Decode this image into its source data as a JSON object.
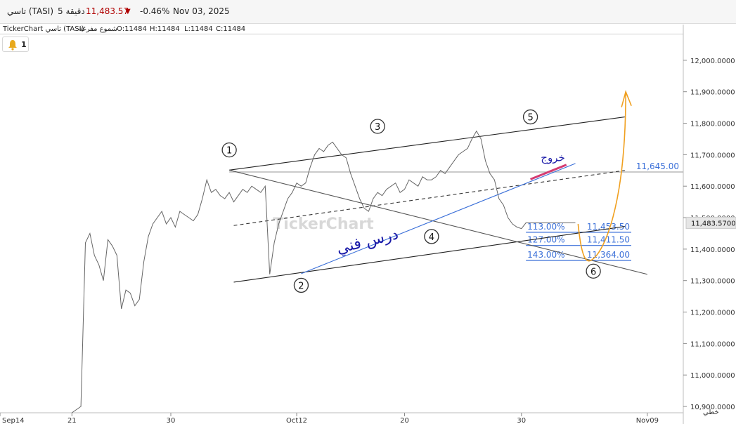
{
  "header": {
    "symbol": "تاسي (TASI)",
    "interval": "5 دقيقة",
    "price": "11,483.57",
    "change": "-0.46%",
    "date": "Nov 03, 2025",
    "down_color": "#b00000"
  },
  "subheader": {
    "source": "TickerChart تاسي (TASI)",
    "chart_style": "شموع مفرغة",
    "open": "O:11484",
    "high": "H:11484",
    "low": "L:11484",
    "close": "C:11484"
  },
  "alerts": {
    "icon": "bell-icon",
    "count": "1"
  },
  "scale_button": "خطي",
  "watermark": "TickerChart",
  "chart_data": {
    "type": "line",
    "y_axis": {
      "ticks": [
        "12,000.0000",
        "11,900.0000",
        "11,800.0000",
        "11,700.0000",
        "11,600.0000",
        "11,500.0000",
        "11,400.0000",
        "11,300.0000",
        "11,200.0000",
        "11,100.0000",
        "11,000.0000",
        "10,900.0000"
      ],
      "tick_values": [
        12000,
        11900,
        11800,
        11700,
        11600,
        11500,
        11400,
        11300,
        11200,
        11100,
        11000,
        10900
      ],
      "ylim": [
        10880,
        12080
      ],
      "current_value": 11483.57,
      "current_label": "11,483.5700",
      "grid": false
    },
    "x_axis": {
      "ticks": [
        "Sep14",
        "21",
        "30",
        "Oct12",
        "20",
        "30",
        "Nov09"
      ],
      "tick_index": [
        0,
        8,
        19,
        33,
        45,
        58,
        72
      ],
      "xlim": [
        0,
        76
      ]
    },
    "series": [
      {
        "x": [
          8,
          9,
          9.5,
          10,
          10.5,
          11,
          11.5,
          12,
          12.5,
          13,
          13.5,
          14,
          14.5,
          15,
          15.5,
          16,
          16.5,
          17,
          17.5,
          18,
          18.5,
          19,
          19.5,
          20,
          20.5,
          21,
          21.5,
          22,
          22.5,
          23,
          23.5,
          24,
          24.5,
          25,
          25.5,
          26,
          26.5,
          27,
          27.5,
          28,
          28.5,
          29,
          29.5,
          30,
          30.5,
          31,
          31.5,
          32,
          32.5,
          33,
          33.5,
          34,
          34.5,
          35,
          35.5,
          36,
          36.5,
          37,
          37.5,
          38,
          38.5,
          39,
          39.5,
          40,
          40.5,
          41,
          41.5,
          42,
          42.5,
          43,
          43.5,
          44,
          44.5,
          45,
          45.5,
          46,
          46.5,
          47,
          47.5,
          48,
          48.5,
          49,
          49.5,
          50,
          50.5,
          51,
          51.5,
          52,
          52.5,
          53,
          53.5,
          54,
          54.5,
          55,
          55.5,
          56,
          56.5,
          57,
          57.5,
          58,
          58.5,
          59,
          59.5,
          60,
          60.5,
          61,
          61.5,
          62,
          62.5,
          63,
          63.5,
          64
        ],
        "values": [
          10880,
          10900,
          11420,
          11450,
          11380,
          11350,
          11300,
          11430,
          11410,
          11380,
          11210,
          11270,
          11260,
          11220,
          11240,
          11360,
          11440,
          11480,
          11500,
          11520,
          11480,
          11500,
          11470,
          11520,
          11510,
          11500,
          11490,
          11510,
          11560,
          11620,
          11580,
          11590,
          11570,
          11560,
          11580,
          11550,
          11570,
          11590,
          11580,
          11600,
          11590,
          11580,
          11600,
          11320,
          11420,
          11480,
          11520,
          11560,
          11580,
          11610,
          11600,
          11610,
          11660,
          11700,
          11720,
          11710,
          11730,
          11740,
          11720,
          11700,
          11690,
          11640,
          11600,
          11560,
          11530,
          11520,
          11560,
          11580,
          11570,
          11590,
          11600,
          11610,
          11580,
          11590,
          11620,
          11610,
          11600,
          11630,
          11620,
          11620,
          11630,
          11650,
          11640,
          11660,
          11680,
          11700,
          11710,
          11720,
          11750,
          11775,
          11750,
          11680,
          11640,
          11620,
          11560,
          11540,
          11500,
          11480,
          11470,
          11465,
          11483.57,
          11483.57,
          11483.57,
          11483.57,
          11483.57,
          11483.57,
          11483.57,
          11483.57,
          11483.57,
          11483.57,
          11483.57,
          11483.57
        ]
      }
    ],
    "wave_labels": [
      {
        "label": "1",
        "x": 25.5,
        "y": 11715
      },
      {
        "label": "2",
        "x": 33.5,
        "y": 11285
      },
      {
        "label": "3",
        "x": 42,
        "y": 11790
      },
      {
        "label": "4",
        "x": 48,
        "y": 11440
      },
      {
        "label": "5",
        "x": 59,
        "y": 11820
      },
      {
        "label": "6",
        "x": 66,
        "y": 11330
      }
    ],
    "channel_lines": [
      {
        "x1": 25.5,
        "y1": 11651,
        "x2": 69.5,
        "y2": 11820,
        "color": "#222",
        "dash": false
      },
      {
        "x1": 26,
        "y1": 11295,
        "x2": 69.5,
        "y2": 11472,
        "color": "#222",
        "dash": false
      },
      {
        "x1": 25.5,
        "y1": 11651,
        "x2": 72,
        "y2": 11320,
        "color": "#555",
        "dash": false
      },
      {
        "x1": 26,
        "y1": 11475,
        "x2": 69.5,
        "y2": 11650,
        "color": "#333",
        "dash": true
      },
      {
        "x1": 33.5,
        "y1": 11322,
        "x2": 64,
        "y2": 11672,
        "color": "#3a6fd8",
        "dash": false
      },
      {
        "x1": 59,
        "y1": 11622,
        "x2": 63,
        "y2": 11668,
        "color": "#d43c72",
        "dash": false
      }
    ],
    "horizontal_levels": [
      {
        "value": 11645,
        "label": "11,645.00",
        "x_start": 25.5,
        "color": "#aaaaaa",
        "label_color": "#3a6fd8"
      },
      {
        "value": 11453.5,
        "label": "11,453.50",
        "pct": "113.00%",
        "x_start": 58.5,
        "color": "#3a6fd8",
        "label_color": "#3a6fd8"
      },
      {
        "value": 11411.5,
        "label": "11,411.50",
        "pct": "127.00%",
        "x_start": 58.5,
        "color": "#3a6fd8",
        "label_color": "#3a6fd8"
      },
      {
        "value": 11364,
        "label": "11,364.00",
        "pct": "143.00%",
        "x_start": 58.5,
        "color": "#3a6fd8",
        "label_color": "#3a6fd8"
      }
    ],
    "annotations": [
      {
        "text": "درس فني",
        "x": 41,
        "y": 11410,
        "color": "#1a1aa8"
      },
      {
        "text": "خروج",
        "x": 61.5,
        "y": 11680,
        "color": "#1a1aa8"
      }
    ],
    "projection": {
      "color": "#f0a020",
      "label": "orange-arrow"
    }
  }
}
